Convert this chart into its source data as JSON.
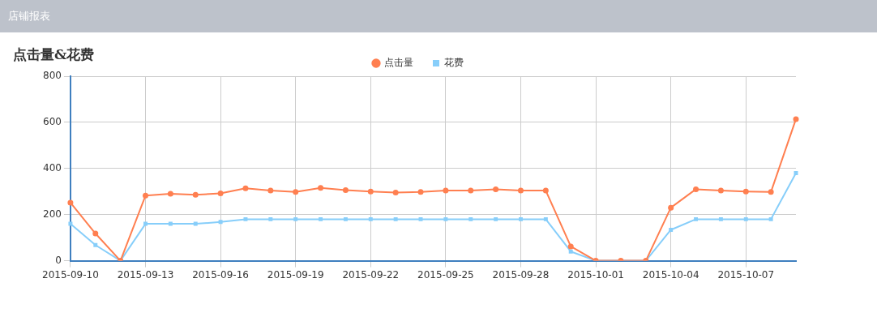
{
  "chart_data": {
    "type": "line",
    "title": "点击量&花费",
    "annotations": [
      "店铺报表"
    ],
    "categories": [
      "2015-09-10",
      null,
      null,
      "2015-09-13",
      null,
      null,
      "2015-09-16",
      null,
      null,
      "2015-09-19",
      null,
      null,
      "2015-09-22",
      null,
      null,
      "2015-09-25",
      null,
      null,
      "2015-09-28",
      null,
      null,
      "2015-10-01",
      null,
      null,
      "2015-10-04",
      null,
      null,
      "2015-10-07",
      null,
      null
    ],
    "series": [
      {
        "name": "点击量",
        "color": "#ff7f50",
        "marker": "circle",
        "values": [
          252,
          118,
          0,
          282,
          290,
          286,
          292,
          314,
          304,
          298,
          316,
          306,
          300,
          296,
          298,
          304,
          304,
          310,
          304,
          304,
          62,
          0,
          0,
          0,
          230,
          310,
          304,
          300,
          298,
          614
        ]
      },
      {
        "name": "花费",
        "color": "#87cefa",
        "marker": "square",
        "values": [
          160,
          68,
          0,
          160,
          160,
          160,
          168,
          180,
          180,
          180,
          180,
          180,
          180,
          180,
          180,
          180,
          180,
          180,
          180,
          180,
          40,
          0,
          0,
          0,
          134,
          180,
          180,
          180,
          180,
          380
        ]
      }
    ],
    "ylim": [
      0,
      800
    ],
    "yticks": [
      0,
      200,
      400,
      600,
      800
    ],
    "grid": true,
    "legend": "top"
  }
}
